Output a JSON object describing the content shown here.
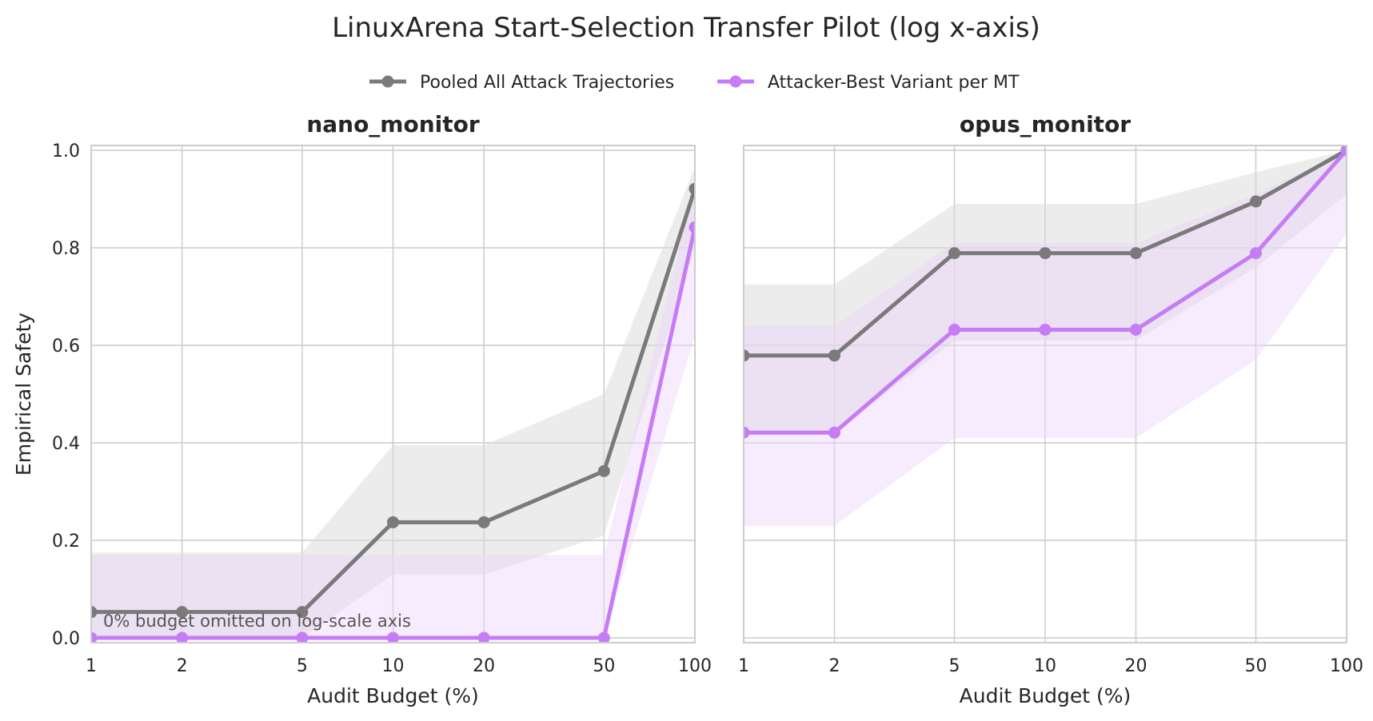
{
  "figure": {
    "title": "LinuxArena Start-Selection Transfer Pilot (log x-axis)",
    "legend_position": "top-center",
    "ylabel": "Empirical Safety",
    "xlabel": "Audit Budget (%)",
    "note": "0% budget omitted on log-scale axis"
  },
  "legend": [
    {
      "name": "Pooled All Attack Trajectories",
      "color": "#7a7a7a"
    },
    {
      "name": "Attacker-Best Variant per MT",
      "color": "#c67cf5"
    }
  ],
  "chart_data": [
    {
      "type": "line",
      "title": "nano_monitor",
      "x_scale": "log",
      "x": [
        1,
        2,
        5,
        10,
        20,
        50,
        100
      ],
      "x_ticks": [
        "1",
        "2",
        "5",
        "10",
        "20",
        "50",
        "100"
      ],
      "xlim": [
        1,
        100
      ],
      "ylim": [
        0,
        1
      ],
      "y_ticks": [
        "0.0",
        "0.2",
        "0.4",
        "0.6",
        "0.8",
        "1.0"
      ],
      "grid": true,
      "series": [
        {
          "name": "Pooled All Attack Trajectories",
          "color": "#7a7a7a",
          "fill": "#d9d9d9",
          "values": [
            0.053,
            0.053,
            0.053,
            0.237,
            0.237,
            0.342,
            0.921
          ],
          "lower": [
            0.0,
            0.0,
            0.0,
            0.13,
            0.13,
            0.21,
            0.8
          ],
          "upper": [
            0.175,
            0.175,
            0.175,
            0.395,
            0.395,
            0.5,
            0.965
          ]
        },
        {
          "name": "Attacker-Best Variant per MT",
          "color": "#c67cf5",
          "fill": "#ead5fc",
          "values": [
            0.0,
            0.0,
            0.0,
            0.0,
            0.0,
            0.0,
            0.842
          ],
          "lower": [
            0.0,
            0.0,
            0.0,
            0.0,
            0.0,
            0.0,
            0.62
          ],
          "upper": [
            0.17,
            0.17,
            0.17,
            0.17,
            0.17,
            0.17,
            0.93
          ]
        }
      ]
    },
    {
      "type": "line",
      "title": "opus_monitor",
      "x_scale": "log",
      "x": [
        1,
        2,
        5,
        10,
        20,
        50,
        100
      ],
      "x_ticks": [
        "1",
        "2",
        "5",
        "10",
        "20",
        "50",
        "100"
      ],
      "xlim": [
        1,
        100
      ],
      "ylim": [
        0,
        1
      ],
      "grid": true,
      "series": [
        {
          "name": "Pooled All Attack Trajectories",
          "color": "#7a7a7a",
          "fill": "#d9d9d9",
          "values": [
            0.579,
            0.579,
            0.789,
            0.789,
            0.789,
            0.895,
            1.0
          ],
          "lower": [
            0.42,
            0.42,
            0.61,
            0.61,
            0.61,
            0.76,
            0.91
          ],
          "upper": [
            0.725,
            0.725,
            0.89,
            0.89,
            0.89,
            0.955,
            1.0
          ]
        },
        {
          "name": "Attacker-Best Variant per MT",
          "color": "#c67cf5",
          "fill": "#ead5fc",
          "values": [
            0.421,
            0.421,
            0.632,
            0.632,
            0.632,
            0.789,
            1.0
          ],
          "lower": [
            0.23,
            0.23,
            0.41,
            0.41,
            0.41,
            0.57,
            0.83
          ],
          "upper": [
            0.64,
            0.64,
            0.81,
            0.81,
            0.81,
            0.91,
            1.0
          ]
        }
      ]
    }
  ]
}
